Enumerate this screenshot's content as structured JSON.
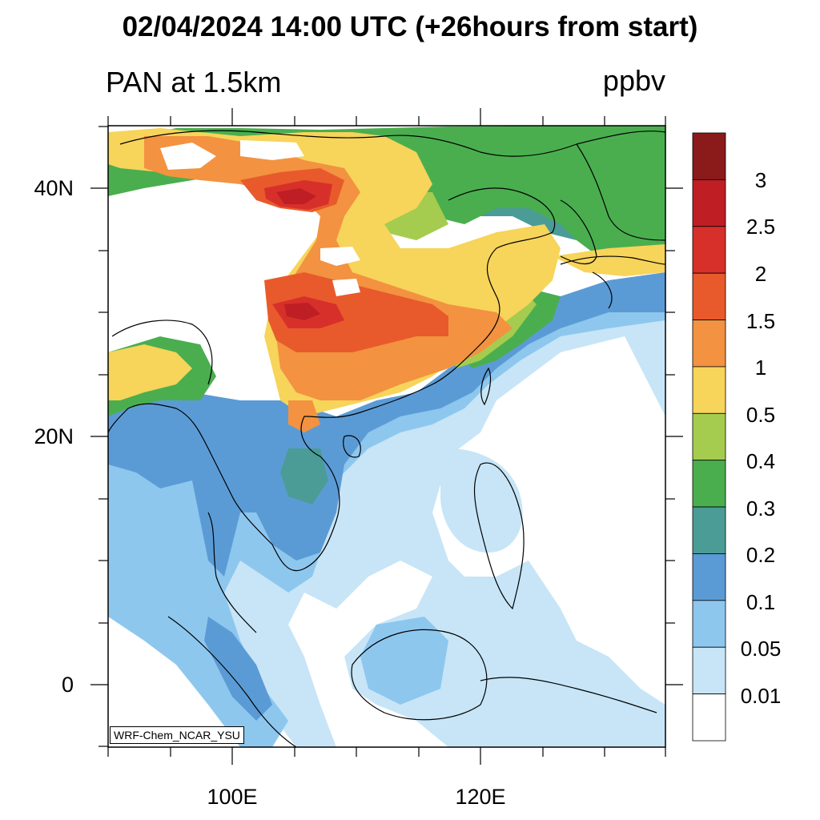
{
  "header": {
    "title": "02/04/2024 14:00 UTC (+26hours from start)",
    "variable": "PAN at 1.5km",
    "units": "ppbv"
  },
  "map": {
    "region": "East and Southeast Asia",
    "lat_labels": [
      "40N",
      "20N",
      "0"
    ],
    "lon_labels": [
      "100E",
      "120E"
    ],
    "lat_range": [
      -5,
      45
    ],
    "lon_range": [
      90,
      135
    ],
    "watermark": "WRF-Chem_NCAR_YSU"
  },
  "colorbar": {
    "labels": [
      "3",
      "2.5",
      "2",
      "1.5",
      "1",
      "0.5",
      "0.4",
      "0.3",
      "0.2",
      "0.1",
      "0.05",
      "0.01"
    ],
    "colors": [
      "#8b1a1a",
      "#bf1e24",
      "#d7302b",
      "#e85a2b",
      "#f39240",
      "#f7d45a",
      "#a5cc4e",
      "#4aae4f",
      "#4b9c96",
      "#5b9bd5",
      "#8ec7ee",
      "#c7e5f7",
      "#ffffff"
    ]
  }
}
